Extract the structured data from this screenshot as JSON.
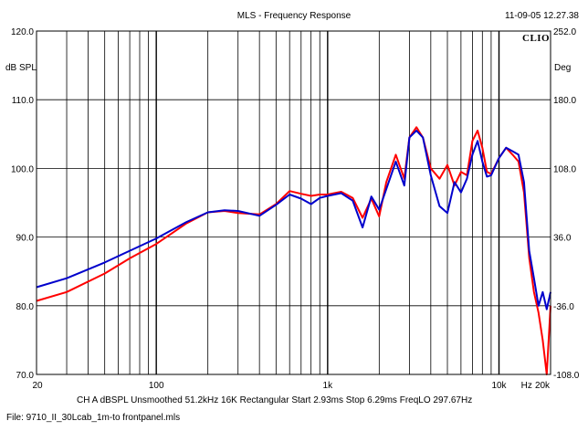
{
  "header": {
    "title": "MLS - Frequency Response",
    "timestamp": "11-09-05 12.27.38",
    "logo": "CLIO"
  },
  "axes": {
    "left_unit": "dB SPL",
    "right_unit": "Deg",
    "left_ticks": [
      "120.0",
      "110.0",
      "100.0",
      "90.0",
      "80.0",
      "70.0"
    ],
    "right_ticks": [
      "252.0",
      "180.0",
      "108.0",
      "36.0",
      "-36.0",
      "-108.0"
    ],
    "x_ticks": [
      "20",
      "100",
      "1k",
      "10k",
      "Hz",
      "20k"
    ]
  },
  "footer": {
    "info": "CH A   dBSPL   Unsmoothed   51.2kHz   16K   Rectangular   Start 2.93ms   Stop 6.29ms   FreqLO 297.67Hz",
    "file": "File: 9710_II_30Lcab_1m-to frontpanel.mls"
  },
  "colors": {
    "red_trace": "#ff0000",
    "blue_trace": "#0000cc",
    "grid": "#000000"
  },
  "chart_data": {
    "type": "line",
    "title": "MLS - Frequency Response",
    "xlabel": "Hz",
    "ylabel": "dB SPL",
    "xscale": "log",
    "xlim": [
      20,
      20000
    ],
    "ylim": [
      70,
      120
    ],
    "y2lim": [
      -108,
      252
    ],
    "grid": true,
    "series": [
      {
        "color": "red",
        "x": [
          20,
          30,
          50,
          70,
          100,
          150,
          200,
          250,
          300,
          400,
          500,
          600,
          700,
          800,
          900,
          1000,
          1200,
          1400,
          1600,
          1800,
          2000,
          2200,
          2500,
          2800,
          3000,
          3300,
          3600,
          4000,
          4500,
          5000,
          5500,
          6000,
          6500,
          7000,
          7500,
          8000,
          8500,
          9000,
          10000,
          11000,
          12000,
          13000,
          14000,
          15000,
          16000,
          17000,
          18000,
          19000,
          20000
        ],
        "y": [
          80.7,
          82.0,
          84.7,
          86.9,
          89.0,
          92.0,
          93.6,
          93.8,
          93.5,
          93.3,
          94.8,
          96.7,
          96.3,
          96.0,
          96.2,
          96.2,
          96.6,
          95.7,
          92.8,
          95.6,
          93.0,
          98.0,
          102.0,
          98.5,
          104.5,
          106.0,
          104.5,
          100.0,
          98.5,
          100.5,
          97.5,
          99.5,
          99.0,
          104.0,
          105.5,
          103.0,
          99.5,
          99.2,
          101.5,
          103.0,
          102.0,
          101.0,
          96.5,
          87.0,
          82.0,
          79.0,
          75.0,
          70.0,
          80.0
        ]
      },
      {
        "color": "blue",
        "x": [
          20,
          30,
          50,
          70,
          100,
          150,
          200,
          250,
          300,
          400,
          500,
          600,
          700,
          800,
          900,
          1000,
          1200,
          1400,
          1600,
          1800,
          2000,
          2200,
          2500,
          2800,
          3000,
          3300,
          3600,
          4000,
          4500,
          5000,
          5500,
          6000,
          6500,
          7000,
          7500,
          8000,
          8500,
          9000,
          10000,
          11000,
          12000,
          13000,
          14000,
          15000,
          16000,
          17000,
          18000,
          19000,
          20000
        ],
        "y": [
          82.7,
          84.0,
          86.3,
          88.0,
          89.8,
          92.2,
          93.6,
          93.9,
          93.8,
          93.1,
          94.7,
          96.2,
          95.6,
          94.8,
          95.7,
          96.0,
          96.4,
          95.3,
          91.4,
          95.9,
          94.0,
          97.0,
          101.0,
          97.5,
          104.5,
          105.5,
          104.5,
          99.0,
          94.5,
          93.5,
          98.0,
          96.5,
          98.5,
          102.0,
          104.0,
          101.0,
          98.8,
          99.0,
          101.5,
          103.0,
          102.5,
          102.0,
          98.0,
          88.0,
          84.0,
          80.0,
          82.0,
          79.5,
          82.0
        ]
      }
    ]
  }
}
